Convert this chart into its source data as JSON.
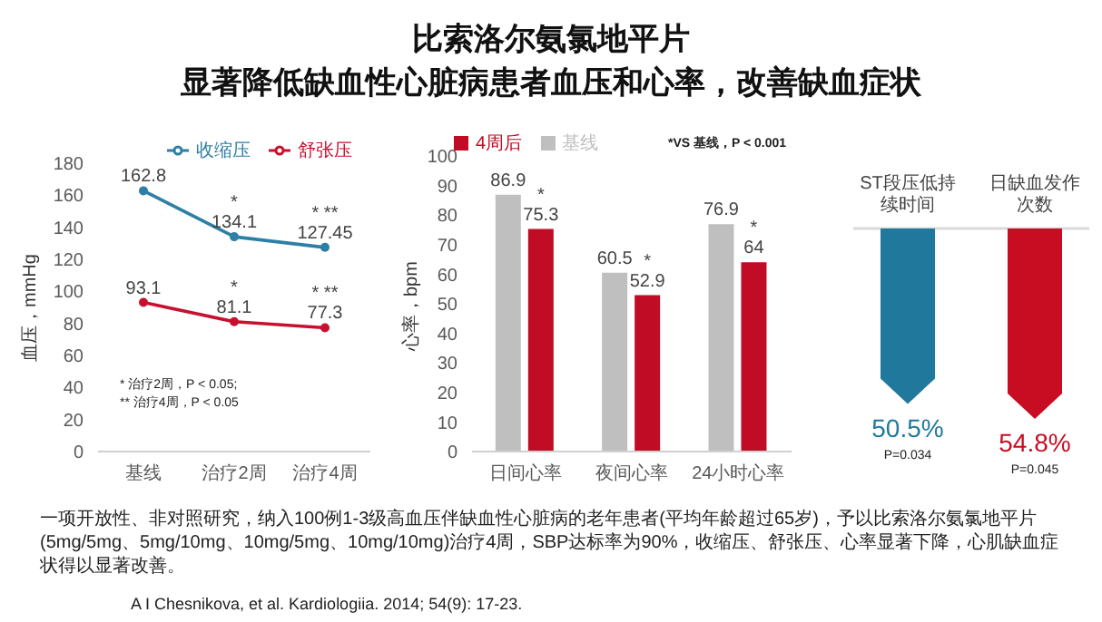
{
  "chart_data": [
    {
      "type": "line",
      "ylabel": "血压，mmHg",
      "categories": [
        "基线",
        "治疗2周",
        "治疗4周"
      ],
      "series": [
        {
          "name": "收缩压",
          "color": "#2e7fa6",
          "values": [
            162.8,
            134.1,
            127.45
          ]
        },
        {
          "name": "舒张压",
          "color": "#c8102e",
          "values": [
            93.1,
            81.1,
            77.3
          ]
        }
      ],
      "ylim": [
        0,
        180
      ],
      "yticks": [
        0,
        20,
        40,
        60,
        80,
        100,
        120,
        140,
        160,
        180
      ],
      "marker": "circle",
      "legend": "top right",
      "data_labels": true,
      "annotations": [
        {
          "text": "*",
          "x": "治疗2周",
          "y": 134.1
        },
        {
          "text": "* **",
          "x": "治疗4周",
          "y": 127.45
        },
        {
          "text": "*",
          "x": "治疗2周",
          "y": 81.1
        },
        {
          "text": "* **",
          "x": "治疗4周",
          "y": 77.3
        },
        "* 治疗2周，P < 0.05;",
        "** 治疗4周，P < 0.05"
      ]
    },
    {
      "type": "bar",
      "title": "比索洛尔氨氯地平片",
      "subtitle": "显著降低缺血性心脏病患者血压和心率，改善缺血症状",
      "ylabel": "心率，bpm",
      "categories": [
        "日间心率",
        "夜间心率",
        "24小时心率"
      ],
      "series": [
        {
          "name": "基线",
          "color": "#bfbfbf",
          "values": [
            86.9,
            60.5,
            76.9
          ]
        },
        {
          "name": "4周后",
          "color": "#c00c24",
          "values": [
            75.3,
            52.9,
            64
          ]
        }
      ],
      "ylim": [
        0,
        100
      ],
      "yticks": [
        0,
        10,
        20,
        30,
        40,
        50,
        60,
        70,
        80,
        90,
        100
      ],
      "legend": "top left",
      "data_labels": true,
      "annotations": [
        {
          "text": "*",
          "x": "日间心率",
          "y": 75.3
        },
        {
          "text": "*",
          "x": "夜间心率",
          "y": 52.9
        },
        {
          "text": "*",
          "x": "24小时心率",
          "y": 64
        },
        "*VS 基线，P < 0.001",
        "一项开放性、非对照研究，纳入100例1-3级高血压伴缺血性心脏病的老年患者(平均年龄超过65岁)，予以比索洛尔氨氯地平片(5mg/5mg、5mg/10mg、10mg/5mg、10mg/10mg)治疗4周，SBP达标率为90%，收缩压、舒张压、心率显著下降，心肌缺血症状得以显著改善。",
        "A I Chesnikova, et al. Kardiologiia. 2014; 54(9): 17-23."
      ]
    },
    {
      "type": "other",
      "categories": [
        "ST段压低持续时间",
        "日缺血发作次数"
      ],
      "values": [
        50.5,
        54.8
      ],
      "value_labels": [
        "50.5%",
        "54.8%"
      ],
      "colors": [
        "#20789c",
        "#c80c22"
      ],
      "annotations": [
        "P=0.034",
        "P=0.045"
      ]
    }
  ]
}
